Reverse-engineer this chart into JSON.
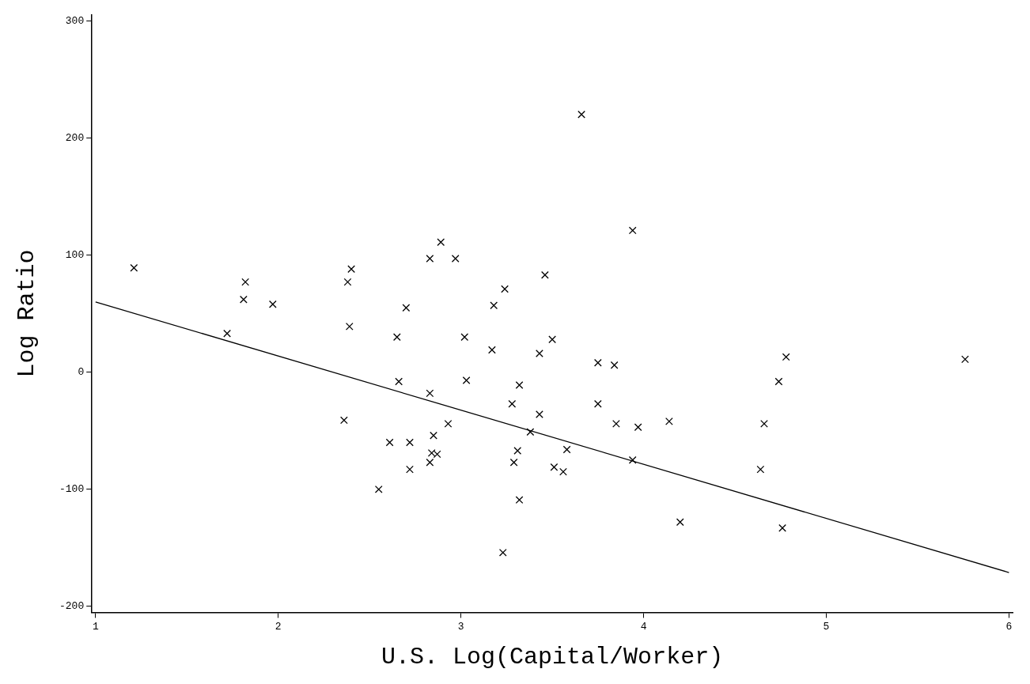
{
  "chart_data": {
    "type": "scatter",
    "xlabel": "U.S. Log(Capital/Worker)",
    "ylabel": "Log Ratio",
    "xlim": [
      0.98,
      6.02
    ],
    "xticks": [
      1,
      2,
      3,
      4,
      5,
      6
    ],
    "ylim": [
      -205,
      305
    ],
    "yticks": [
      -200,
      -100,
      0,
      100,
      200,
      300
    ],
    "grid": false,
    "marker": "cross",
    "series": [
      {
        "color": "#000000",
        "x": [
          1.21,
          1.82,
          1.81,
          1.97,
          1.72,
          2.38,
          2.4,
          2.39,
          2.83,
          2.89,
          2.97,
          2.7,
          2.65,
          3.02,
          3.18,
          3.24,
          3.17,
          3.66,
          3.94,
          3.46,
          3.5,
          2.36,
          2.55,
          2.61,
          2.72,
          2.72,
          2.83,
          2.84,
          2.87,
          2.85,
          2.93,
          2.83,
          2.66,
          3.03,
          3.23,
          3.28,
          3.29,
          3.43,
          3.75,
          3.84,
          4.78,
          5.76,
          3.32,
          4.74,
          3.43,
          3.75,
          3.85,
          3.97,
          4.14,
          4.66,
          3.38,
          3.31,
          3.58,
          3.51,
          3.56,
          3.94,
          4.64,
          3.32,
          4.2,
          4.76
        ],
        "values": [
          89,
          77,
          62,
          58,
          33,
          77,
          88,
          39,
          97,
          111,
          97,
          55,
          30,
          30,
          57,
          71,
          19,
          220,
          121,
          83,
          28,
          -41,
          -100,
          -60,
          -60,
          -83,
          -77,
          -69,
          -70,
          -54,
          -44,
          -18,
          -8,
          -7,
          -154,
          -27,
          -77,
          16,
          8,
          6,
          13,
          11,
          -11,
          -8,
          -36,
          -27,
          -44,
          -47,
          -42,
          -44,
          -51,
          -67,
          -66,
          -81,
          -85,
          -75,
          -83,
          -109,
          -128,
          -133
        ]
      },
      {
        "type": "line",
        "color": "#000000",
        "marker": "none",
        "line_style": "solid",
        "x": [
          1,
          6
        ],
        "values": [
          60,
          -171
        ]
      }
    ]
  }
}
